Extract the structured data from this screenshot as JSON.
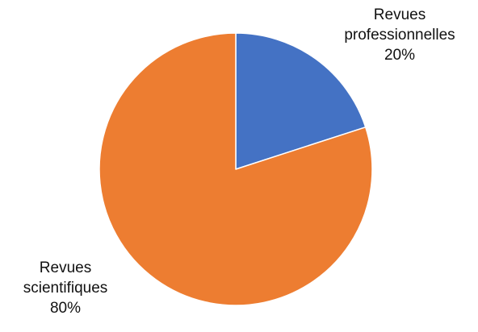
{
  "colors": {
    "background": "#ffffff",
    "label_text": "#111111",
    "slice_stroke": "#ffffff"
  },
  "chart_data": {
    "type": "pie",
    "start_angle_deg": 0,
    "direction": "clockwise",
    "slices": [
      {
        "label_lines": [
          "Revues",
          "professionnelles"
        ],
        "value": 20,
        "value_label": "20%",
        "color": "#4472C4"
      },
      {
        "label_lines": [
          "Revues",
          "scientifiques"
        ],
        "value": 80,
        "value_label": "80%",
        "color": "#ED7D31"
      }
    ],
    "legend": "none"
  }
}
